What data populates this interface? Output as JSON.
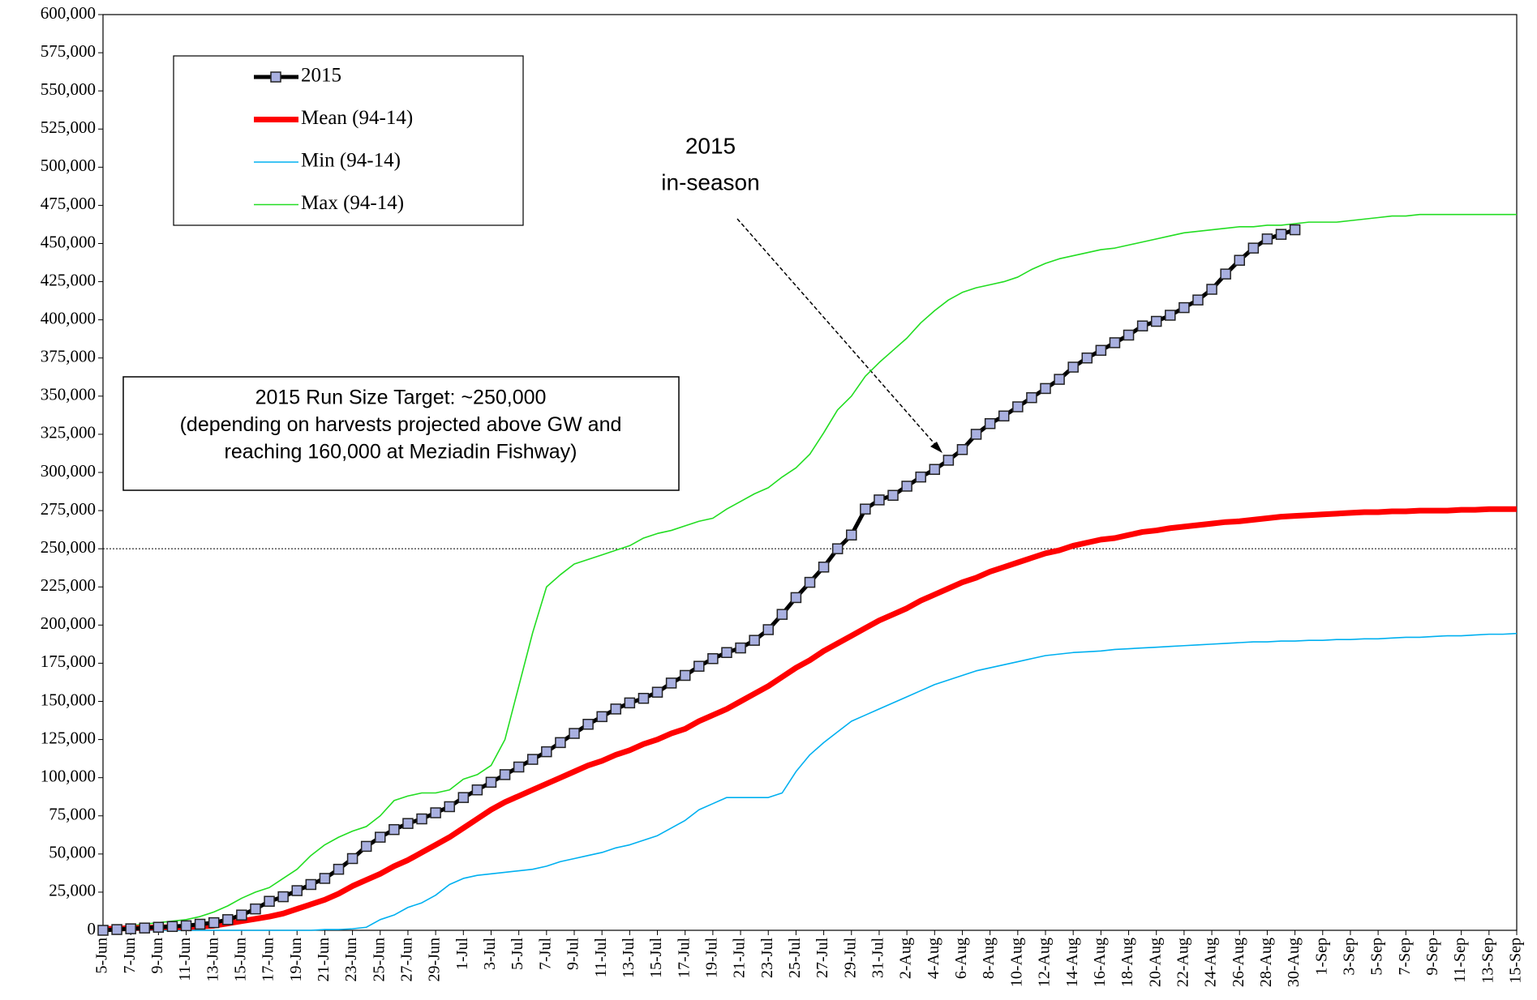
{
  "chart_data": {
    "type": "line",
    "categories": [
      "5-Jun",
      null,
      "7-Jun",
      null,
      "9-Jun",
      null,
      "11-Jun",
      null,
      "13-Jun",
      null,
      "15-Jun",
      null,
      "17-Jun",
      null,
      "19-Jun",
      null,
      "21-Jun",
      null,
      "23-Jun",
      null,
      "25-Jun",
      null,
      "27-Jun",
      null,
      "29-Jun",
      null,
      "1-Jul",
      null,
      "3-Jul",
      null,
      "5-Jul",
      null,
      "7-Jul",
      null,
      "9-Jul",
      null,
      "11-Jul",
      null,
      "13-Jul",
      null,
      "15-Jul",
      null,
      "17-Jul",
      null,
      "19-Jul",
      null,
      "21-Jul",
      null,
      "23-Jul",
      null,
      "25-Jul",
      null,
      "27-Jul",
      null,
      "29-Jul",
      null,
      "31-Jul",
      null,
      "2-Aug",
      null,
      "4-Aug",
      null,
      "6-Aug",
      null,
      "8-Aug",
      null,
      "10-Aug",
      null,
      "12-Aug",
      null,
      "14-Aug",
      null,
      "16-Aug",
      null,
      "18-Aug",
      null,
      "20-Aug",
      null,
      "22-Aug",
      null,
      "24-Aug",
      null,
      "26-Aug",
      null,
      "28-Aug",
      null,
      "30-Aug",
      null,
      "1-Sep",
      null,
      "3-Sep",
      null,
      "5-Sep",
      null,
      "7-Sep",
      null,
      "9-Sep",
      null,
      "11-Sep",
      null,
      "13-Sep",
      null,
      "15-Sep"
    ],
    "series": [
      {
        "name": "2015",
        "color": "#000000",
        "marker": "square",
        "marker_color": "#a9b0e0",
        "width": 5,
        "values": [
          0,
          500,
          1000,
          1500,
          2000,
          2500,
          3000,
          4000,
          5000,
          7000,
          10000,
          14000,
          19000,
          22000,
          26000,
          30000,
          34000,
          40000,
          47000,
          55000,
          61000,
          66000,
          70000,
          73000,
          77000,
          81000,
          87000,
          92000,
          97000,
          102000,
          107000,
          112000,
          117000,
          123000,
          129000,
          135000,
          140000,
          145000,
          149000,
          152000,
          156000,
          162000,
          167000,
          173000,
          178000,
          182000,
          185000,
          190000,
          197000,
          207000,
          218000,
          228000,
          238000,
          250000,
          259000,
          276000,
          282000,
          285000,
          291000,
          297000,
          302000,
          308000,
          315000,
          325000,
          332000,
          337000,
          343000,
          349000,
          355000,
          361000,
          369000,
          375000,
          380000,
          385000,
          390000,
          396000,
          399000,
          403000,
          408000,
          413000,
          420000,
          430000,
          439000,
          447000,
          453000,
          456000,
          459000,
          null,
          null,
          null,
          null,
          null,
          null,
          null,
          null,
          null,
          null,
          null,
          null,
          null,
          null,
          null,
          null
        ]
      },
      {
        "name": "Mean (94-14)",
        "color": "#ff0000",
        "width": 7,
        "values": [
          1000,
          1000,
          1500,
          1500,
          2000,
          2000,
          2000,
          2500,
          3000,
          4500,
          6000,
          7500,
          9000,
          11000,
          14000,
          17000,
          20000,
          24000,
          29000,
          33000,
          37000,
          42000,
          46000,
          51000,
          56000,
          61000,
          67000,
          73000,
          79000,
          84000,
          88000,
          92000,
          96000,
          100000,
          104000,
          108000,
          111000,
          115000,
          118000,
          122000,
          125000,
          129000,
          132000,
          137000,
          141000,
          145000,
          150000,
          155000,
          160000,
          166000,
          172000,
          177000,
          183000,
          188000,
          193000,
          198000,
          203000,
          207000,
          211000,
          216000,
          220000,
          224000,
          228000,
          231000,
          235000,
          238000,
          241000,
          244000,
          247000,
          249000,
          252000,
          254000,
          256000,
          257000,
          259000,
          261000,
          262000,
          263500,
          264500,
          265500,
          266500,
          267500,
          268000,
          269000,
          270000,
          271000,
          271500,
          272000,
          272500,
          273000,
          273500,
          274000,
          274000,
          274500,
          274500,
          275000,
          275000,
          275000,
          275500,
          275500,
          276000,
          276000,
          276000
        ]
      },
      {
        "name": "Min (94-14)",
        "color": "#00b0f0",
        "width": 1.6,
        "values": [
          0,
          0,
          0,
          0,
          0,
          0,
          0,
          0,
          0,
          0,
          0,
          0,
          0,
          0,
          0,
          0,
          500,
          500,
          1000,
          2000,
          7000,
          10000,
          15000,
          18000,
          23000,
          30000,
          34000,
          36000,
          37000,
          38000,
          39000,
          40000,
          42000,
          45000,
          47000,
          49000,
          51000,
          54000,
          56000,
          59000,
          62000,
          67000,
          72000,
          79000,
          83000,
          87000,
          87000,
          87000,
          87000,
          90000,
          104000,
          115000,
          123000,
          130000,
          137000,
          141000,
          145000,
          149000,
          153000,
          157000,
          161000,
          164000,
          167000,
          170000,
          172000,
          174000,
          176000,
          178000,
          180000,
          181000,
          182000,
          182500,
          183000,
          184000,
          184500,
          185000,
          185500,
          186000,
          186500,
          187000,
          187500,
          188000,
          188500,
          189000,
          189000,
          189500,
          189500,
          190000,
          190000,
          190500,
          190500,
          191000,
          191000,
          191500,
          192000,
          192000,
          192500,
          193000,
          193000,
          193500,
          194000,
          194000,
          194500
        ]
      },
      {
        "name": "Max (94-14)",
        "color": "#22dd22",
        "width": 1.6,
        "values": [
          1000,
          2000,
          3000,
          4000,
          5000,
          6000,
          7000,
          9000,
          12000,
          16000,
          21000,
          25000,
          28000,
          34000,
          40000,
          49000,
          56000,
          61000,
          65000,
          68000,
          75000,
          85000,
          88000,
          90000,
          90000,
          92000,
          99000,
          102000,
          108000,
          125000,
          160000,
          195000,
          225000,
          233000,
          240000,
          243000,
          246000,
          249000,
          252000,
          257000,
          260000,
          262000,
          265000,
          268000,
          270000,
          276000,
          281000,
          286000,
          290000,
          297000,
          303000,
          312000,
          326000,
          341000,
          350000,
          363000,
          372000,
          380000,
          388000,
          398000,
          406000,
          413000,
          418000,
          421000,
          423000,
          425000,
          428000,
          433000,
          437000,
          440000,
          442000,
          444000,
          446000,
          447000,
          449000,
          451000,
          453000,
          455000,
          457000,
          458000,
          459000,
          460000,
          461000,
          461000,
          462000,
          462000,
          463000,
          464000,
          464000,
          464000,
          465000,
          466000,
          467000,
          468000,
          468000,
          469000,
          469000,
          469000,
          469000,
          469000,
          469000,
          469000,
          469000
        ]
      }
    ],
    "ylim": [
      0,
      600000
    ],
    "yticks": [
      {
        "value": 0,
        "label": "0"
      },
      {
        "value": 25000,
        "label": "25,000"
      },
      {
        "value": 50000,
        "label": "50,000"
      },
      {
        "value": 75000,
        "label": "75,000"
      },
      {
        "value": 100000,
        "label": "100,000"
      },
      {
        "value": 125000,
        "label": "125,000"
      },
      {
        "value": 150000,
        "label": "150,000"
      },
      {
        "value": 175000,
        "label": "175,000"
      },
      {
        "value": 200000,
        "label": "200,000"
      },
      {
        "value": 225000,
        "label": "225,000"
      },
      {
        "value": 250000,
        "label": "250,000"
      },
      {
        "value": 275000,
        "label": "275,000"
      },
      {
        "value": 300000,
        "label": "300,000"
      },
      {
        "value": 325000,
        "label": "325,000"
      },
      {
        "value": 350000,
        "label": "350,000"
      },
      {
        "value": 375000,
        "label": "375,000"
      },
      {
        "value": 400000,
        "label": "400,000"
      },
      {
        "value": 425000,
        "label": "425,000"
      },
      {
        "value": 450000,
        "label": "450,000"
      },
      {
        "value": 475000,
        "label": "475,000"
      },
      {
        "value": 500000,
        "label": "500,000"
      },
      {
        "value": 525000,
        "label": "525,000"
      },
      {
        "value": 550000,
        "label": "550,000"
      },
      {
        "value": 575000,
        "label": "575,000"
      },
      {
        "value": 600000,
        "label": "600,000"
      }
    ],
    "grid": false,
    "legend": "upper left",
    "reference_line": 250000,
    "annotation": [
      "2015",
      "in-season"
    ],
    "note_box": [
      "2015 Run Size Target: ~250,000",
      "(depending on harvests projected above GW and",
      "reaching 160,000 at Meziadin Fishway)"
    ]
  }
}
